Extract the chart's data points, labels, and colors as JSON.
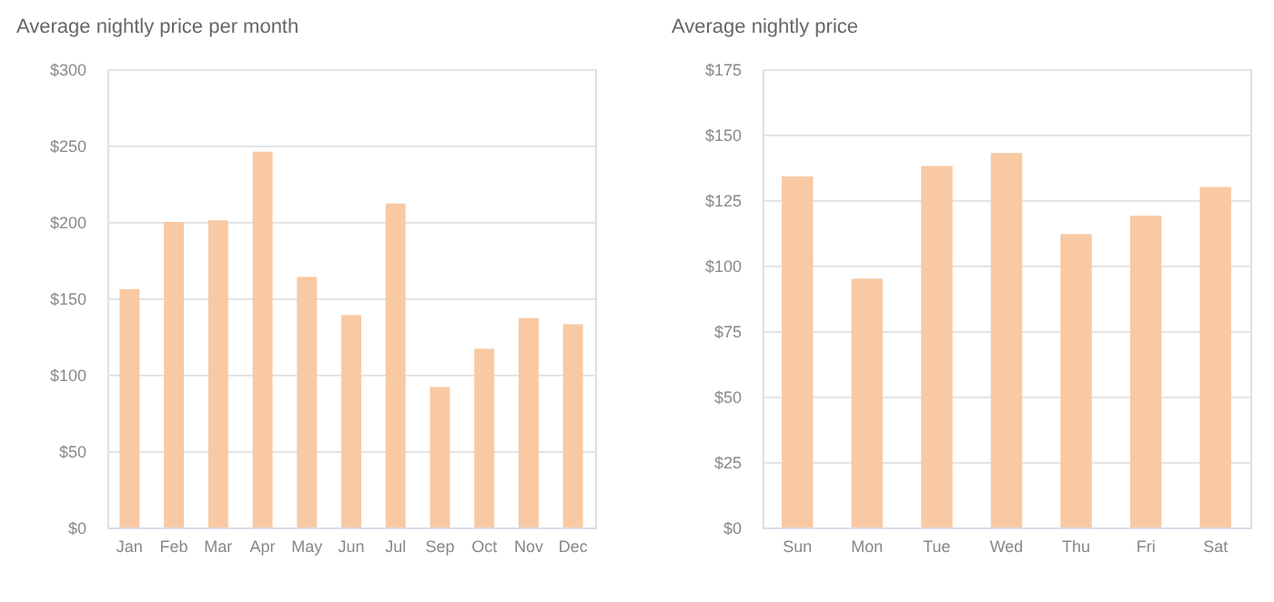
{
  "chart_data": [
    {
      "type": "bar",
      "title": "Average nightly price per month",
      "categories": [
        "Jan",
        "Feb",
        "Mar",
        "Apr",
        "May",
        "Jun",
        "Jul",
        "Sep",
        "Oct",
        "Nov",
        "Dec"
      ],
      "values": [
        156,
        200,
        201,
        246,
        164,
        139,
        212,
        92,
        117,
        137,
        133
      ],
      "color": "#f8c9a3",
      "ylim": [
        0,
        300
      ],
      "yticks": [
        {
          "value": 0,
          "label": "$0"
        },
        {
          "value": 50,
          "label": "$50"
        },
        {
          "value": 100,
          "label": "$100"
        },
        {
          "value": 150,
          "label": "$150"
        },
        {
          "value": 200,
          "label": "$200"
        },
        {
          "value": 250,
          "label": "$250"
        },
        {
          "value": 300,
          "label": "$300"
        }
      ],
      "grid": "y"
    },
    {
      "type": "bar",
      "title": "Average nightly price",
      "categories": [
        "Sun",
        "Mon",
        "Tue",
        "Wed",
        "Thu",
        "Fri",
        "Sat"
      ],
      "values": [
        134,
        95,
        138,
        143,
        112,
        119,
        130
      ],
      "color": "#f8c9a3",
      "ylim": [
        0,
        175
      ],
      "yticks": [
        {
          "value": 0,
          "label": "$0"
        },
        {
          "value": 25,
          "label": "$25"
        },
        {
          "value": 50,
          "label": "$50"
        },
        {
          "value": 75,
          "label": "$75"
        },
        {
          "value": 100,
          "label": "$100"
        },
        {
          "value": 125,
          "label": "$125"
        },
        {
          "value": 150,
          "label": "$150"
        },
        {
          "value": 175,
          "label": "$175"
        }
      ],
      "grid": "y"
    }
  ]
}
